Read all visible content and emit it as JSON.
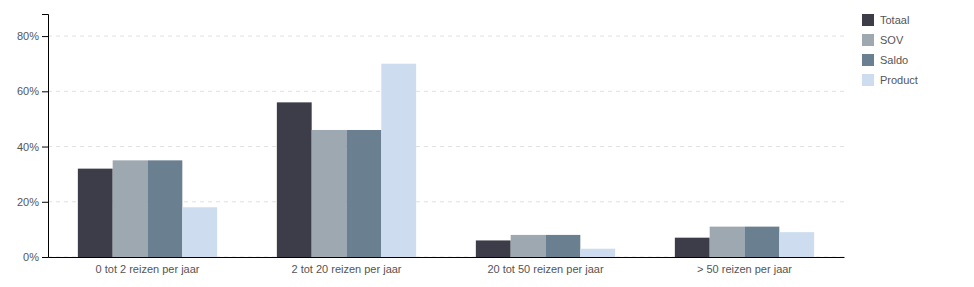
{
  "chart_data": {
    "type": "bar",
    "categories": [
      "0 tot 2 reizen per jaar",
      "2 tot 20 reizen per jaar",
      "20 tot 50 reizen per jaar",
      "> 50 reizen per jaar"
    ],
    "series": [
      {
        "name": "Totaal",
        "color": "#3c3d48",
        "values": [
          0.32,
          0.56,
          0.06,
          0.07
        ]
      },
      {
        "name": "SOV",
        "color": "#9da8b0",
        "values": [
          0.35,
          0.46,
          0.08,
          0.11
        ]
      },
      {
        "name": "Saldo",
        "color": "#6a7f90",
        "values": [
          0.35,
          0.46,
          0.08,
          0.11
        ]
      },
      {
        "name": "Product",
        "color": "#cddcee",
        "values": [
          0.18,
          0.7,
          0.03,
          0.09
        ]
      }
    ],
    "ylim": [
      0,
      0.88
    ],
    "yticks": [
      {
        "value": 0.0,
        "label": "0%"
      },
      {
        "value": 0.2,
        "label": "20%"
      },
      {
        "value": 0.4,
        "label": "40%"
      },
      {
        "value": 0.6,
        "label": "60%"
      },
      {
        "value": 0.8,
        "label": "80%"
      }
    ],
    "grid": true,
    "legend": "right"
  }
}
